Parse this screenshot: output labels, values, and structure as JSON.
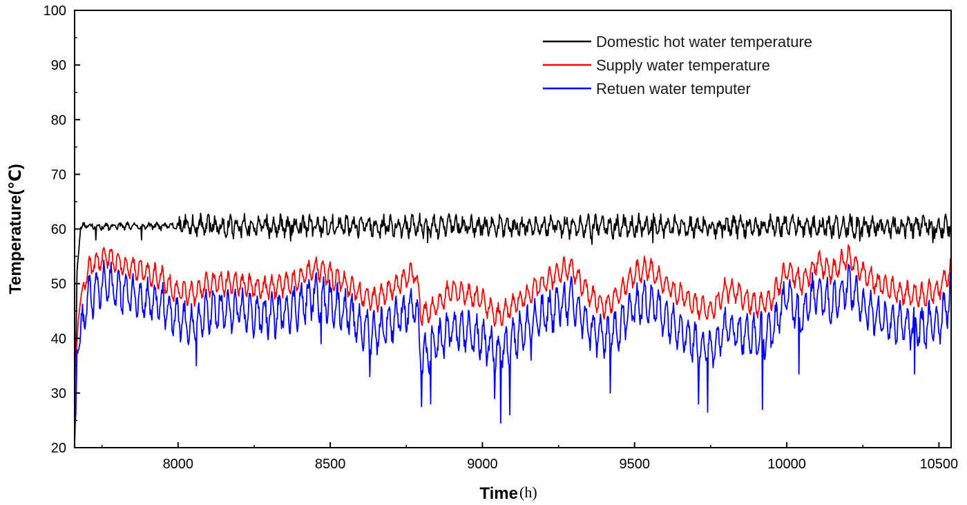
{
  "chart_data": {
    "type": "line",
    "title": "",
    "xlabel": "Time",
    "xlabel_unit": "(h)",
    "ylabel": "Temperature(℃)",
    "xlim": [
      7660,
      10540
    ],
    "ylim": [
      20,
      100
    ],
    "xticks": [
      8000,
      8500,
      9000,
      9500,
      10000,
      10500
    ],
    "yticks": [
      20,
      30,
      40,
      50,
      60,
      70,
      80,
      90,
      100
    ],
    "grid": false,
    "legend_position": "top-right",
    "series": [
      {
        "name": "Domestic hot water temperature",
        "color": "#000000",
        "level": 60.5,
        "amplitude": 2.2,
        "period_h": 24,
        "dips": [
          [
            7730,
            58
          ],
          [
            7880,
            58
          ],
          [
            8370,
            57.8
          ],
          [
            8820,
            57.5
          ],
          [
            9360,
            57.2
          ],
          [
            9560,
            57.5
          ],
          [
            10240,
            57.8
          ],
          [
            10480,
            57.5
          ]
        ],
        "x": [
          7660,
          7668,
          7680,
          8000,
          10540
        ],
        "y": [
          20,
          52,
          60.5,
          60.5,
          60.5
        ]
      },
      {
        "name": "Supply water temperature",
        "color": "#ff0000",
        "amplitude": 3.5,
        "period_h": 24,
        "x": [
          7660,
          7666,
          7672,
          7690,
          7710,
          7760,
          7800,
          7850,
          7900,
          7950,
          7980,
          8050,
          8100,
          8200,
          8300,
          8400,
          8450,
          8550,
          8600,
          8650,
          8720,
          8780,
          8800,
          8850,
          8900,
          8950,
          9000,
          9050,
          9100,
          9150,
          9200,
          9250,
          9290,
          9350,
          9400,
          9450,
          9500,
          9550,
          9600,
          9650,
          9700,
          9750,
          9800,
          9850,
          9900,
          9950,
          10000,
          10050,
          10100,
          10150,
          10200,
          10250,
          10300,
          10350,
          10400,
          10450,
          10500,
          10540
        ],
        "y": [
          20,
          38,
          44,
          50,
          53,
          55,
          54,
          53,
          52,
          51,
          49,
          48,
          50,
          50,
          49,
          51,
          53,
          50,
          48,
          47,
          50,
          52,
          44,
          46,
          49,
          48,
          47,
          44,
          46,
          48,
          50,
          52,
          53,
          48,
          46,
          48,
          52,
          53,
          50,
          48,
          46,
          45,
          49,
          48,
          46,
          47,
          53,
          50,
          54,
          52,
          55,
          52,
          50,
          49,
          48,
          48,
          49,
          53
        ]
      },
      {
        "name": "Retuen water temputer",
        "color": "#0000ff",
        "amplitude": 6.5,
        "period_h": 24,
        "spikes": [
          [
            7675,
            38
          ],
          [
            8060,
            35
          ],
          [
            8470,
            39
          ],
          [
            8630,
            33
          ],
          [
            8800,
            27.5
          ],
          [
            8830,
            28
          ],
          [
            9040,
            29
          ],
          [
            9060,
            24.5
          ],
          [
            9090,
            26
          ],
          [
            9160,
            36
          ],
          [
            9420,
            30
          ],
          [
            9710,
            28
          ],
          [
            9740,
            26.5
          ],
          [
            9920,
            27
          ],
          [
            10040,
            33.5
          ],
          [
            10420,
            33.5
          ]
        ],
        "x": [
          7660,
          7664,
          7668,
          7680,
          7700,
          7760,
          7800,
          7850,
          7900,
          7950,
          7980,
          8050,
          8100,
          8200,
          8300,
          8400,
          8450,
          8550,
          8600,
          8650,
          8720,
          8780,
          8800,
          8850,
          8900,
          8950,
          9000,
          9050,
          9100,
          9150,
          9200,
          9250,
          9290,
          9350,
          9400,
          9450,
          9500,
          9550,
          9600,
          9650,
          9700,
          9750,
          9800,
          9850,
          9900,
          9950,
          10000,
          10050,
          10100,
          10150,
          10200,
          10250,
          10300,
          10350,
          10400,
          10450,
          10500,
          10540
        ],
        "y": [
          20,
          26,
          38,
          40,
          47,
          50,
          49,
          48,
          47,
          46,
          44,
          42,
          45,
          45,
          44,
          46,
          48,
          45,
          42,
          41,
          44,
          46,
          36,
          39,
          42,
          41,
          40,
          37,
          40,
          42,
          44,
          46,
          47,
          42,
          40,
          42,
          46,
          47,
          44,
          42,
          39,
          38,
          42,
          41,
          40,
          41,
          48,
          44,
          49,
          46,
          50,
          46,
          44,
          43,
          42,
          42,
          43,
          48
        ]
      }
    ]
  }
}
